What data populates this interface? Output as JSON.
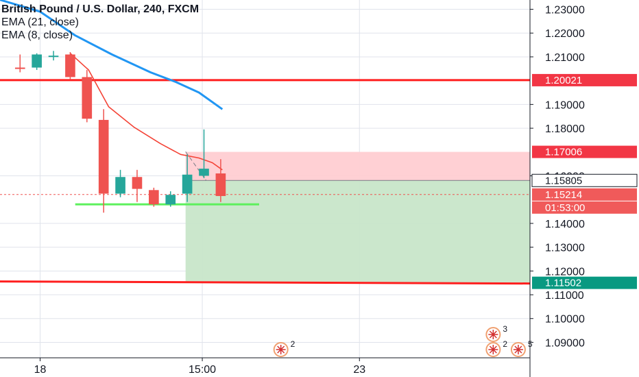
{
  "legend": {
    "title": "British Pound / U.S. Dollar, 240, FXCM",
    "ema21": "EMA (21, close)",
    "ema8": "EMA (8, close)"
  },
  "colors": {
    "up": "#26a69a",
    "down": "#ef5350",
    "ema21": "#2196f3",
    "ema8": "#f44336",
    "support": "#ff1e1e",
    "green_line": "#5cf05c",
    "stop_zone": "#ffcdd2",
    "target_zone": "#c8e6c9",
    "grid": "#e0e3eb"
  },
  "chart_data": {
    "type": "candlestick",
    "symbol": "British Pound / U.S. Dollar",
    "interval": "240",
    "source": "FXCM",
    "y_ticks": [
      "1.23000",
      "1.22000",
      "1.21000",
      "1.19000",
      "1.18000",
      "1.16000",
      "1.14000",
      "1.13000",
      "1.12000",
      "1.11000",
      "1.10000",
      "1.09000"
    ],
    "y_tick_values": [
      1.23,
      1.22,
      1.21,
      1.19,
      1.18,
      1.16,
      1.14,
      1.13,
      1.12,
      1.11,
      1.1,
      1.09
    ],
    "ylim": [
      1.0835,
      1.2339
    ],
    "x_ticks": [
      {
        "label": "18",
        "index": 1.2
      },
      {
        "label": "15:00",
        "index": 10.9
      },
      {
        "label": "23",
        "index": 20.3
      }
    ],
    "xlim": [
      -1.2,
      30.5
    ],
    "candles": [
      {
        "i": 0,
        "o": 1.2055,
        "h": 1.211,
        "l": 1.2035,
        "c": 1.205
      },
      {
        "i": 1,
        "o": 1.2055,
        "h": 1.2115,
        "l": 1.2045,
        "c": 1.211
      },
      {
        "i": 2,
        "o": 1.2105,
        "h": 1.2125,
        "l": 1.2085,
        "c": 1.2105
      },
      {
        "i": 3,
        "o": 1.211,
        "h": 1.212,
        "l": 1.2005,
        "c": 1.2015
      },
      {
        "i": 4,
        "o": 1.2015,
        "h": 1.2045,
        "l": 1.1825,
        "c": 1.184
      },
      {
        "i": 5,
        "o": 1.1835,
        "h": 1.188,
        "l": 1.1445,
        "c": 1.1525
      },
      {
        "i": 6,
        "o": 1.1525,
        "h": 1.1625,
        "l": 1.151,
        "c": 1.1595
      },
      {
        "i": 7,
        "o": 1.1595,
        "h": 1.1625,
        "l": 1.149,
        "c": 1.1545
      },
      {
        "i": 8,
        "o": 1.154,
        "h": 1.155,
        "l": 1.147,
        "c": 1.148
      },
      {
        "i": 9,
        "o": 1.148,
        "h": 1.1535,
        "l": 1.147,
        "c": 1.152
      },
      {
        "i": 10,
        "o": 1.1525,
        "h": 1.169,
        "l": 1.149,
        "c": 1.1605
      },
      {
        "i": 11,
        "o": 1.16,
        "h": 1.1795,
        "l": 1.159,
        "c": 1.163
      },
      {
        "i": 12,
        "o": 1.161,
        "h": 1.167,
        "l": 1.149,
        "c": 1.1515
      }
    ],
    "ema21": [
      [
        -1.2,
        1.234
      ],
      [
        1.2,
        1.229
      ],
      [
        3.3,
        1.219
      ],
      [
        5.5,
        1.211
      ],
      [
        7.8,
        1.2035
      ],
      [
        9.3,
        1.1995
      ],
      [
        10.7,
        1.195
      ],
      [
        12.1,
        1.188
      ]
    ],
    "ema8": [
      [
        3.0,
        1.2115
      ],
      [
        4.1,
        1.2045
      ],
      [
        5.3,
        1.189
      ],
      [
        6.8,
        1.1805
      ],
      [
        8.4,
        1.1735
      ],
      [
        9.6,
        1.169
      ],
      [
        10.7,
        1.1675
      ],
      [
        11.5,
        1.1655
      ],
      [
        12.1,
        1.1625
      ]
    ],
    "support_line": {
      "price": 1.20021,
      "label": "1.20021"
    },
    "lower_line": {
      "price": 1.11502,
      "label": "1.11502"
    },
    "green_line": {
      "x0": 3.3,
      "x1": 14.3,
      "price": 1.148
    },
    "position": {
      "x0": 9.9,
      "x1": 30.5,
      "stop": 1.17006,
      "entry": 1.15805,
      "target": 1.11502,
      "stop_label": "1.17006",
      "entry_label": "1.15805",
      "target_label": "1.11502"
    },
    "last_price": {
      "price": 1.15214,
      "label": "1.15214",
      "countdown": "01:53:00"
    },
    "event_badges": [
      {
        "x": 15.6,
        "count": "2"
      },
      {
        "x": 28.3,
        "count": "3"
      },
      {
        "x": 28.3,
        "count": "2"
      },
      {
        "x": 29.8,
        "count": "5"
      }
    ]
  }
}
